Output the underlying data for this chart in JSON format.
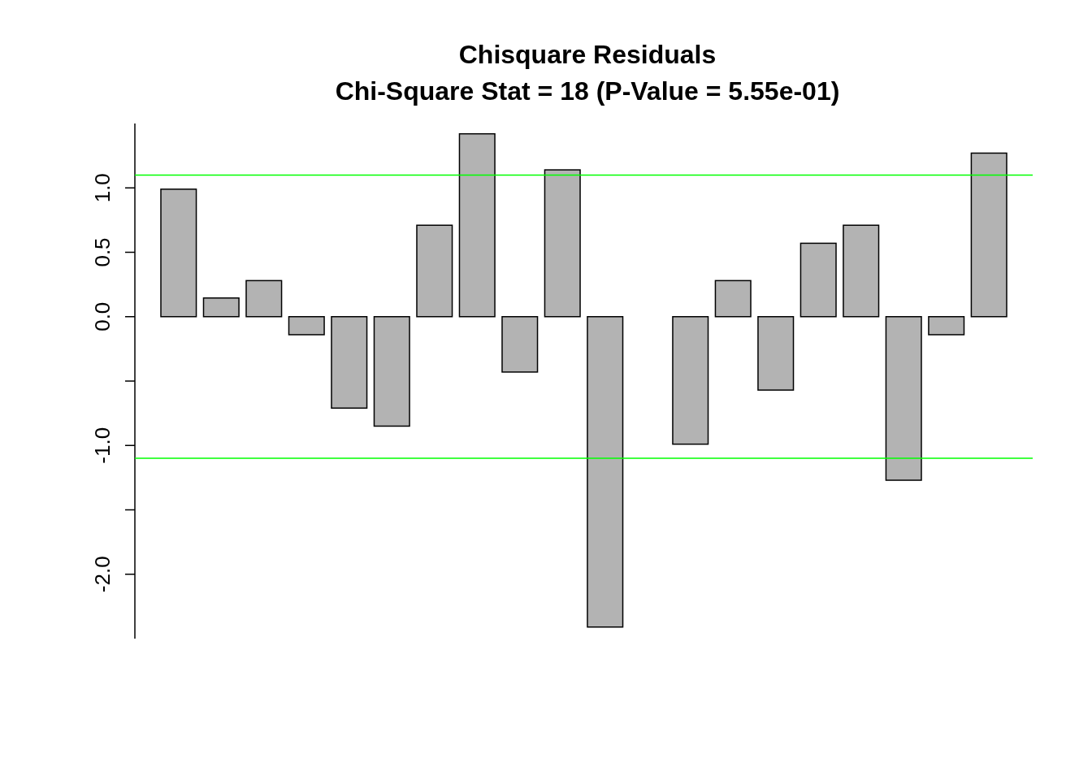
{
  "chart_data": {
    "type": "bar",
    "title": "Chisquare Residuals",
    "subtitle": "Chi-Square Stat = 18 (P-Value = 5.55e-01)",
    "categories": [
      null,
      null,
      null,
      null,
      null,
      null,
      null,
      null,
      null,
      null,
      null,
      null,
      null,
      null,
      null,
      null,
      null,
      null,
      null,
      null
    ],
    "values": [
      0.99,
      0.145,
      0.28,
      -0.14,
      -0.71,
      -0.85,
      0.71,
      1.42,
      -0.43,
      1.14,
      -2.41,
      0,
      -0.99,
      0.28,
      -0.57,
      0.57,
      0.71,
      -1.27,
      -0.14,
      1.27
    ],
    "color": "#b3b3b3",
    "ylim": [
      -2.5,
      1.5
    ],
    "yticks": [
      {
        "value": -2,
        "label": "-2.0"
      },
      {
        "value": -1.5,
        "label": null
      },
      {
        "value": -1,
        "label": "-1.0"
      },
      {
        "value": -0.5,
        "label": null
      },
      {
        "value": 0,
        "label": "0.0"
      },
      {
        "value": 0.5,
        "label": "0.5"
      },
      {
        "value": 1,
        "label": "1.0"
      }
    ],
    "ref_lines": [
      {
        "axis": "y",
        "value": 1.1,
        "color": "#00ff00"
      },
      {
        "axis": "y",
        "value": -1.1,
        "color": "#00ff00"
      }
    ],
    "grid": false
  }
}
